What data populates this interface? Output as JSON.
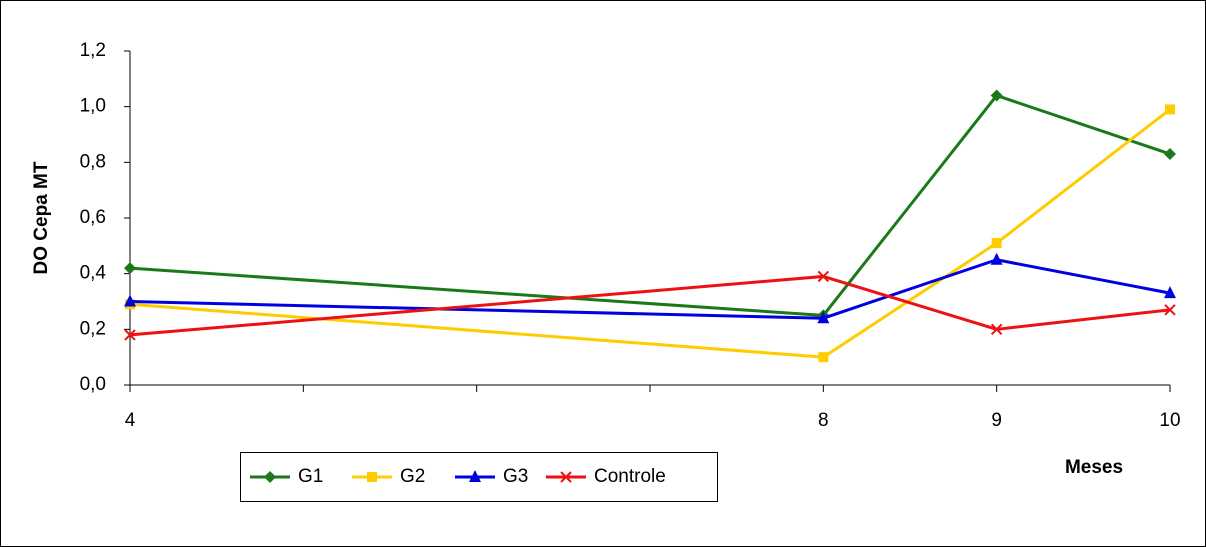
{
  "chart_data": {
    "type": "line",
    "ylabel": "DO Cepa MT",
    "xlabel": "Meses",
    "x": [
      4,
      8,
      9,
      10
    ],
    "xlim": [
      4,
      10
    ],
    "xticks": [
      4,
      8,
      9,
      10
    ],
    "xminorticks": [
      5,
      6,
      7
    ],
    "ylim": [
      0,
      1.2
    ],
    "yticks": [
      {
        "value": 0,
        "label": "0,0"
      },
      {
        "value": 0.2,
        "label": "0,2"
      },
      {
        "value": 0.4,
        "label": "0,4"
      },
      {
        "value": 0.6,
        "label": "0,6"
      },
      {
        "value": 0.8,
        "label": "0,8"
      },
      {
        "value": 1.0,
        "label": "1,0"
      },
      {
        "value": 1.2,
        "label": "1,2"
      }
    ],
    "grid": false,
    "legend": "bottom-left",
    "series": [
      {
        "name": "G1",
        "color": "#1a7a1a",
        "marker": "diamond",
        "values": [
          0.42,
          0.25,
          1.04,
          0.83
        ]
      },
      {
        "name": "G2",
        "color": "#ffcc00",
        "marker": "square",
        "values": [
          0.29,
          0.1,
          0.51,
          0.99
        ]
      },
      {
        "name": "G3",
        "color": "#0000e0",
        "marker": "triangle",
        "values": [
          0.3,
          0.24,
          0.45,
          0.33
        ]
      },
      {
        "name": "Controle",
        "color": "#ee1111",
        "marker": "x",
        "values": [
          0.18,
          0.39,
          0.2,
          0.27
        ]
      }
    ]
  }
}
